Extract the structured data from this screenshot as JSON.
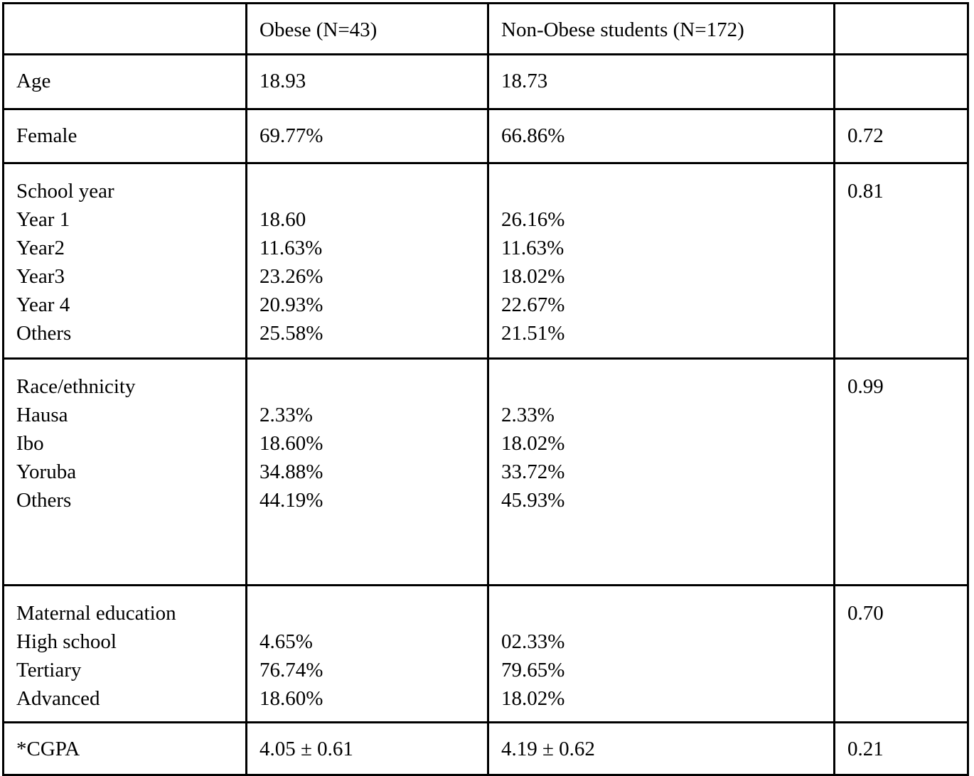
{
  "table": {
    "header": {
      "label": "",
      "obese": "Obese (N=43)",
      "non_obese": "Non-Obese students (N=172)",
      "p_value": ""
    },
    "rows": {
      "age": {
        "label": "Age",
        "obese": "18.93",
        "non_obese": "18.73",
        "p_value": ""
      },
      "female": {
        "label": "Female",
        "obese": "69.77%",
        "non_obese": "66.86%",
        "p_value": "0.72"
      },
      "school_year": {
        "label": "School year\nYear 1\nYear2\nYear3\nYear 4\nOthers",
        "obese": "\n18.60\n11.63%\n23.26%\n20.93%\n25.58%",
        "non_obese": "\n26.16%\n11.63%\n18.02%\n22.67%\n21.51%",
        "p_value": "0.81"
      },
      "race_ethnicity": {
        "label": "Race/ethnicity\nHausa\nIbo\nYoruba\nOthers",
        "obese": "\n2.33%\n18.60%\n34.88%\n44.19%",
        "non_obese": "\n2.33%\n18.02%\n33.72%\n45.93%",
        "p_value": "0.99"
      },
      "maternal_education": {
        "label": "Maternal education\nHigh school\nTertiary\nAdvanced",
        "obese": "\n4.65%\n76.74%\n18.60%",
        "non_obese": "\n02.33%\n79.65%\n18.02%",
        "p_value": "0.70"
      },
      "cgpa": {
        "label": "*CGPA",
        "obese": "4.05 ± 0.61",
        "non_obese": "4.19 ± 0.62",
        "p_value": "0.21"
      }
    }
  }
}
